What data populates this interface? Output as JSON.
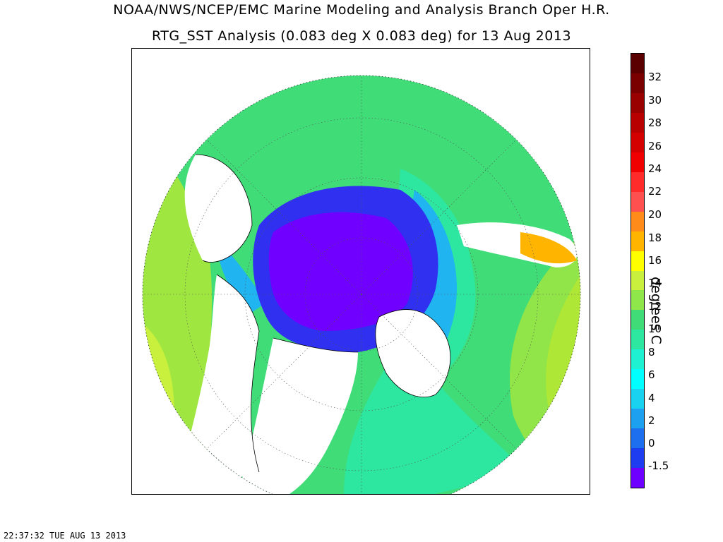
{
  "header": {
    "line1": "NOAA/NWS/NCEP/EMC Marine Modeling and Analysis Branch Oper H.R.",
    "line2": "RTG_SST Analysis (0.083 deg X 0.083 deg) for 13 Aug 2013"
  },
  "colorbar": {
    "units": "degrees C",
    "tick_labels": [
      "32",
      "30",
      "28",
      "26",
      "24",
      "22",
      "20",
      "18",
      "16",
      "14",
      "12",
      "10",
      "8",
      "6",
      "4",
      "2",
      "0",
      "-1.5"
    ],
    "colors": [
      "#5a0000",
      "#7a0000",
      "#990000",
      "#b80000",
      "#d40000",
      "#f00000",
      "#ff2a2a",
      "#ff5050",
      "#ff8c1a",
      "#ffb400",
      "#ffff00",
      "#c8f03c",
      "#8ee64b",
      "#40dc78",
      "#2de6a0",
      "#1ef0d2",
      "#00ffff",
      "#19d2f0",
      "#1ea0f0",
      "#1e6ef0",
      "#1e3cf0",
      "#6e00ff"
    ]
  },
  "map": {
    "projection": "north-polar-stereographic",
    "ocean_colors": {
      "ice": "#7000ff",
      "polar": "#3030f0",
      "arctic_shelf": "#1e6ef0",
      "cold": "#20b4f0",
      "cool": "#20dcc8",
      "mild": "#40dc78",
      "warm": "#a0e640",
      "hot": "#ffe600"
    },
    "land_color": "#ffffff"
  },
  "footer": {
    "timestamp": "22:37:32  TUE AUG 13 2013"
  }
}
